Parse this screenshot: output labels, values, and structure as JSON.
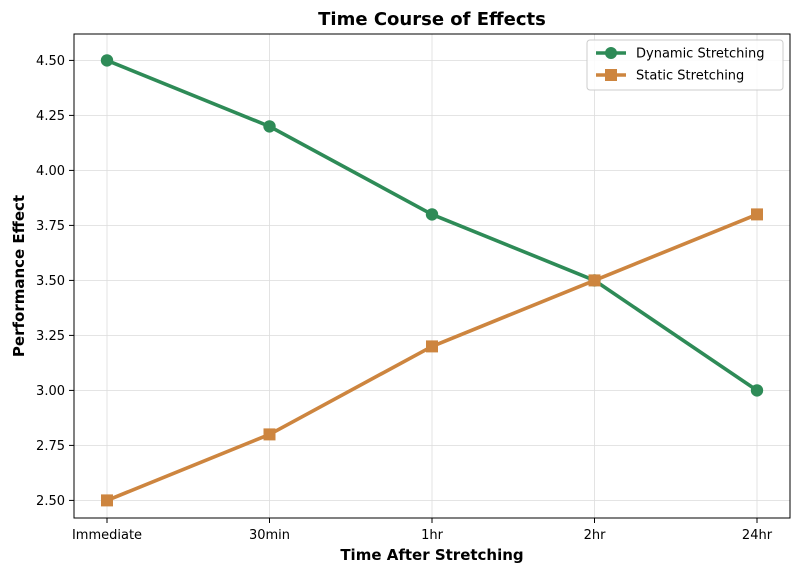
{
  "chart_data": {
    "type": "line",
    "title": "Time Course of Effects",
    "xlabel": "Time After Stretching",
    "ylabel": "Performance Effect",
    "categories": [
      "Immediate",
      "30min",
      "1hr",
      "2hr",
      "24hr"
    ],
    "ylim": [
      2.42,
      4.62
    ],
    "yticks": [
      2.5,
      2.75,
      3.0,
      3.25,
      3.5,
      3.75,
      4.0,
      4.25,
      4.5
    ],
    "ytick_labels": [
      "2.50",
      "2.75",
      "3.00",
      "3.25",
      "3.50",
      "3.75",
      "4.00",
      "4.25",
      "4.50"
    ],
    "grid": true,
    "legend_position": "top-right",
    "series": [
      {
        "name": "Dynamic Stretching",
        "values": [
          4.5,
          4.2,
          3.8,
          3.5,
          3.0
        ],
        "color": "#2E8B57",
        "marker": "circle"
      },
      {
        "name": "Static Stretching",
        "values": [
          2.5,
          2.8,
          3.2,
          3.5,
          3.8
        ],
        "color": "#CD853F",
        "marker": "square"
      }
    ]
  }
}
